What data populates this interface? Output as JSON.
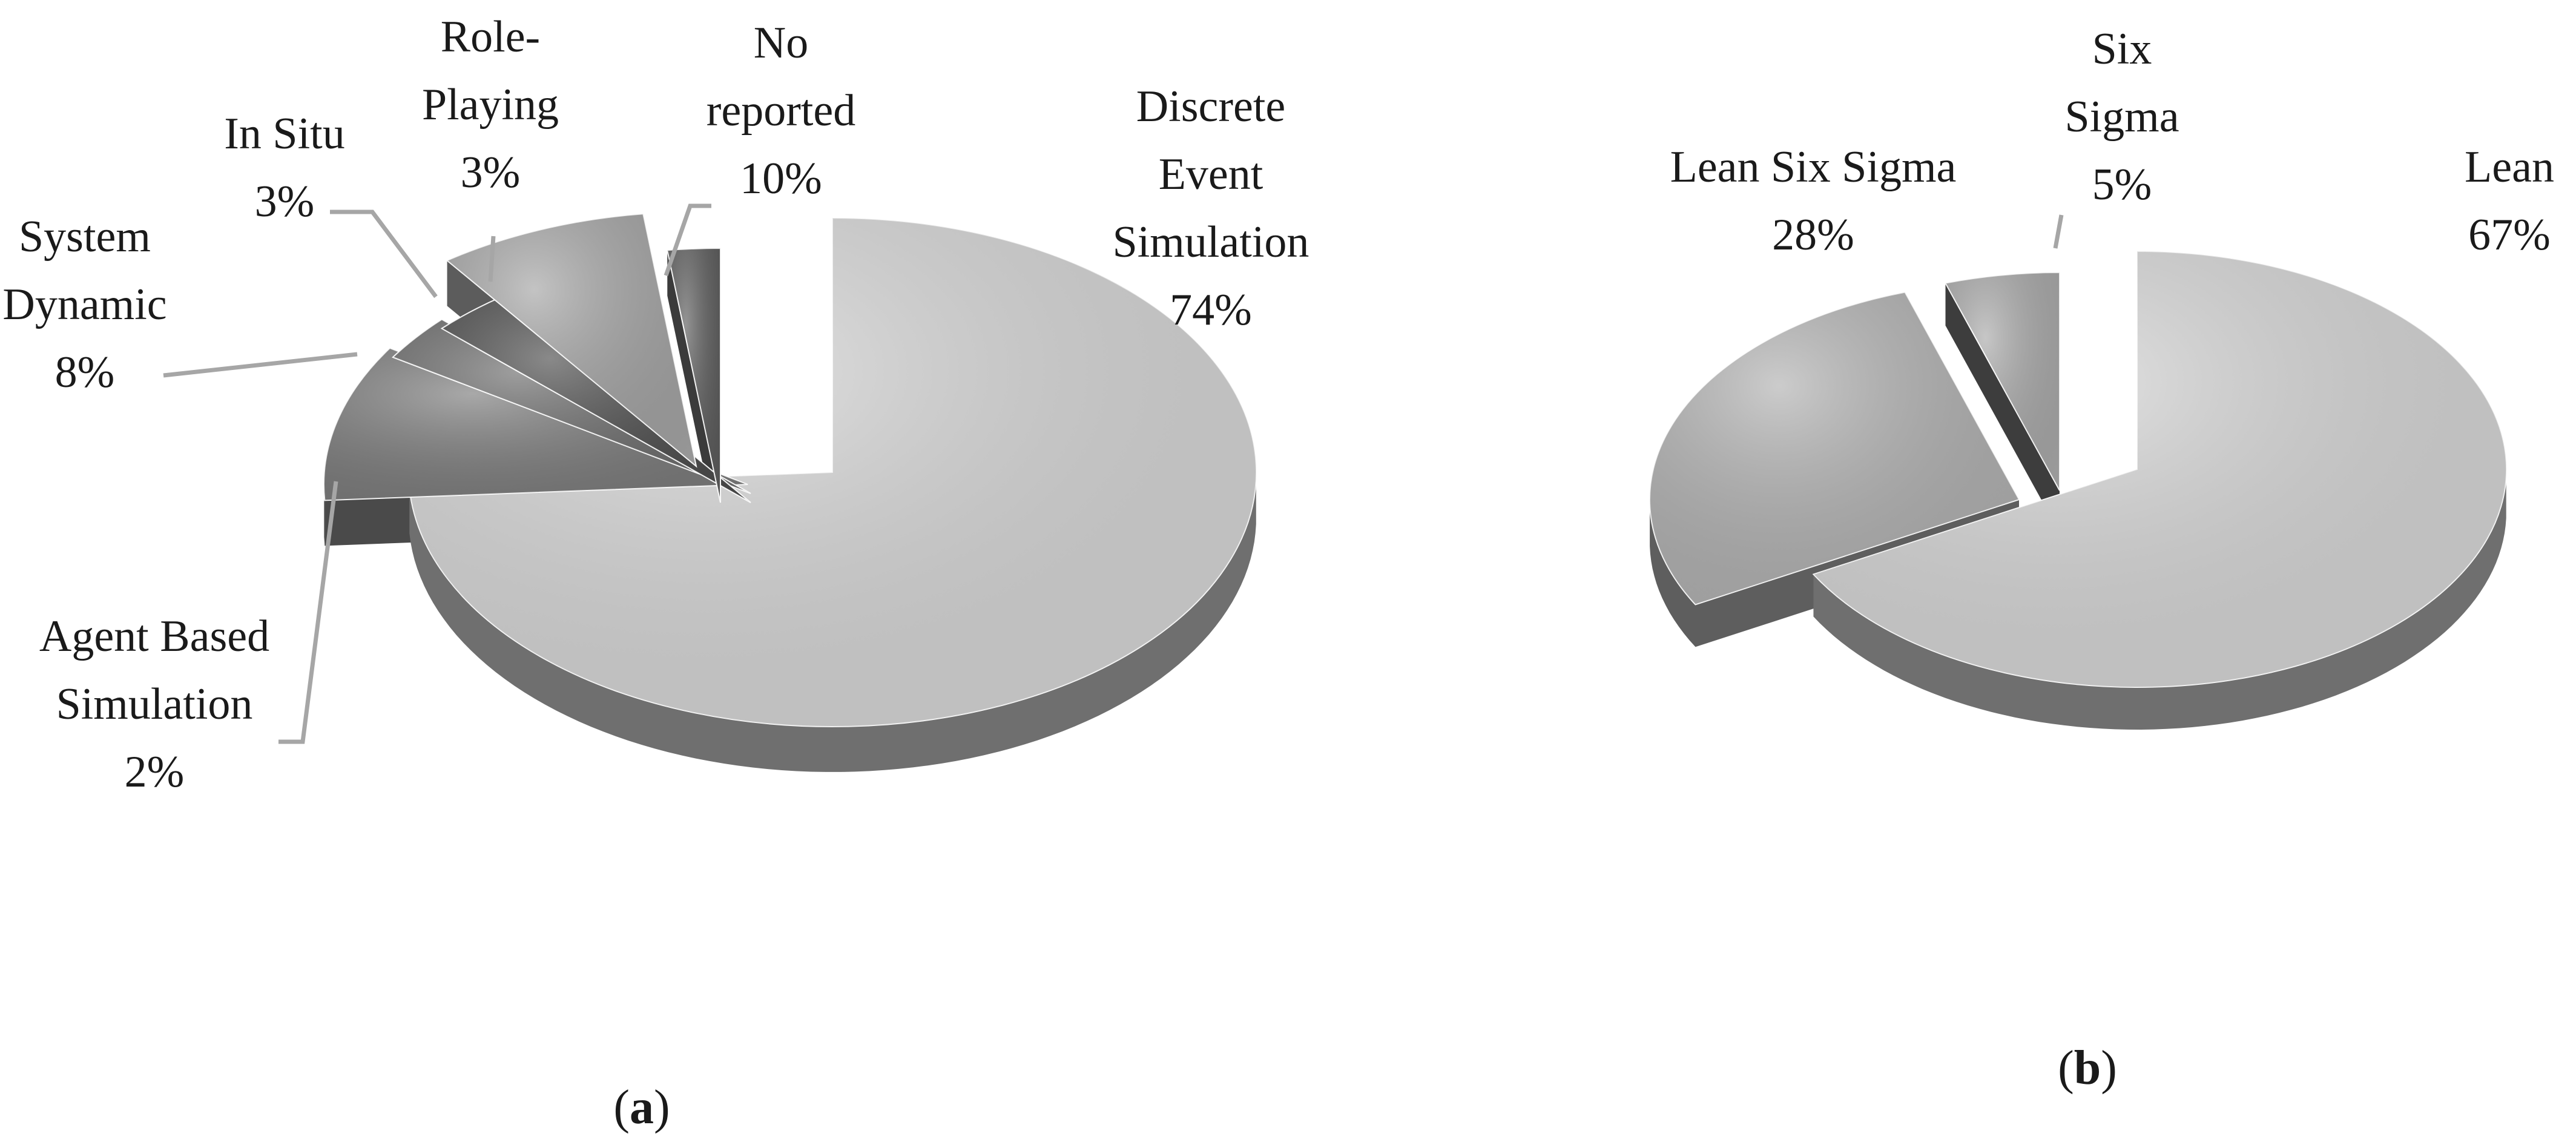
{
  "chart_data": [
    {
      "type": "pie",
      "style": "3d-exploded",
      "panel": "a",
      "caption": {
        "open": "(",
        "letter": "a",
        "close": ")"
      },
      "slices": [
        {
          "lines": [
            "Discrete",
            "Event",
            "Simulation"
          ],
          "value_text": "74%",
          "value": 74,
          "color": "#d6d6d6",
          "shadow": "#6f6f6f"
        },
        {
          "lines": [
            "No",
            "reported"
          ],
          "value_text": "10%",
          "value": 10,
          "color": "#7a7a7a",
          "shadow": "#4a4a4a"
        },
        {
          "lines": [
            "Role-",
            "Playing"
          ],
          "value_text": "3%",
          "value": 3,
          "color": "#6a6a6a",
          "shadow": "#3f3f3f"
        },
        {
          "lines": [
            "In Situ"
          ],
          "value_text": "3%",
          "value": 3,
          "color": "#4a4a4a",
          "shadow": "#2c2c2c"
        },
        {
          "lines": [
            "System",
            "Dynamic"
          ],
          "value_text": "8%",
          "value": 8,
          "color": "#a3a3a3",
          "shadow": "#5c5c5c"
        },
        {
          "lines": [
            "Agent Based",
            "Simulation"
          ],
          "value_text": "2%",
          "value": 2,
          "color": "#5a5a5a",
          "shadow": "#3b3b3b"
        }
      ]
    },
    {
      "type": "pie",
      "style": "3d-exploded",
      "panel": "b",
      "caption": {
        "open": "(",
        "letter": "b",
        "close": ")"
      },
      "slices": [
        {
          "lines": [
            "Lean"
          ],
          "value_text": "67%",
          "value": 67,
          "color": "#d6d6d6",
          "shadow": "#6f6f6f"
        },
        {
          "lines": [
            "Lean Six Sigma"
          ],
          "value_text": "28%",
          "value": 28,
          "color": "#b0b0b0",
          "shadow": "#5e5e5e"
        },
        {
          "lines": [
            "Six",
            "Sigma"
          ],
          "value_text": "5%",
          "value": 5,
          "color": "#a8a8a8",
          "shadow": "#3d3d3d"
        }
      ]
    }
  ]
}
